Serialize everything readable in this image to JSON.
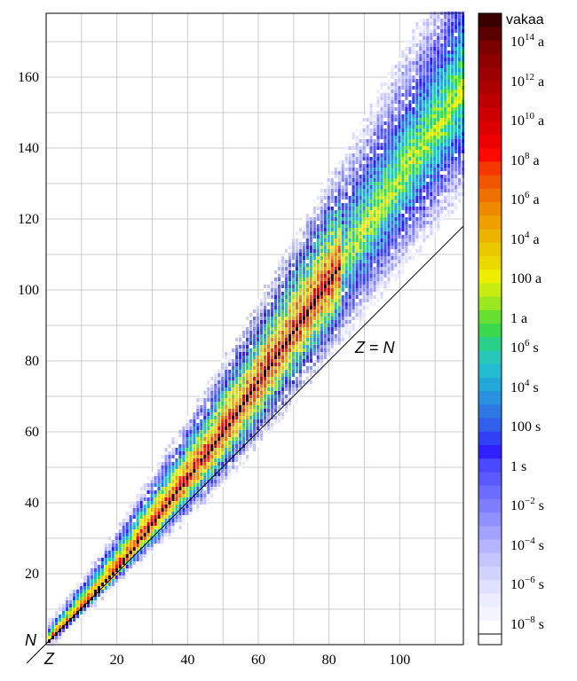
{
  "chart_data": {
    "type": "heatmap",
    "title": "",
    "x_axis": {
      "letter": "Z",
      "range": [
        0,
        118
      ],
      "ticks": [
        20,
        40,
        60,
        80,
        100
      ]
    },
    "y_axis": {
      "letter": "N",
      "range": [
        0,
        178
      ],
      "ticks": [
        20,
        40,
        60,
        80,
        100,
        120,
        140,
        160
      ]
    },
    "grid": true,
    "reference_line": {
      "label_var1": "Z",
      "label_eq": " = ",
      "label_var2": "N",
      "points": [
        [
          0,
          0
        ],
        [
          118,
          118
        ]
      ]
    },
    "colorbar": {
      "placement": "right",
      "stable_label": "vakaa",
      "labels": [
        {
          "base": "10",
          "exp": "14",
          "unit": "a"
        },
        {
          "base": "10",
          "exp": "12",
          "unit": "a"
        },
        {
          "base": "10",
          "exp": "10",
          "unit": "a"
        },
        {
          "base": "10",
          "exp": "8",
          "unit": "a"
        },
        {
          "base": "10",
          "exp": "6",
          "unit": "a"
        },
        {
          "base": "10",
          "exp": "4",
          "unit": "a"
        },
        {
          "base": "100",
          "exp": "",
          "unit": "a"
        },
        {
          "base": "1",
          "exp": "",
          "unit": "a"
        },
        {
          "base": "10",
          "exp": "6",
          "unit": "s"
        },
        {
          "base": "10",
          "exp": "4",
          "unit": "s"
        },
        {
          "base": "100",
          "exp": "",
          "unit": "s"
        },
        {
          "base": "1",
          "exp": "",
          "unit": "s"
        },
        {
          "base": "10",
          "exp": "−2",
          "unit": "s"
        },
        {
          "base": "10",
          "exp": "−4",
          "unit": "s"
        },
        {
          "base": "10",
          "exp": "−6",
          "unit": "s"
        },
        {
          "base": "10",
          "exp": "−8",
          "unit": "s"
        }
      ],
      "colors": [
        "#3a0000",
        "#5a0000",
        "#7a0000",
        "#8c0000",
        "#9c0000",
        "#ac0000",
        "#bc0000",
        "#cc0000",
        "#dc0000",
        "#ec0000",
        "#fa0a00",
        "#f53800",
        "#f05500",
        "#ee7000",
        "#ee8a00",
        "#eea000",
        "#ecb400",
        "#eac800",
        "#ead800",
        "#eeee00",
        "#c8ec10",
        "#9ae820",
        "#66e030",
        "#3ad84c",
        "#28d088",
        "#28c8b8",
        "#24bcd0",
        "#22a8d8",
        "#2a90e0",
        "#2e78e4",
        "#3060ec",
        "#3040f4",
        "#3020ff",
        "#4848ff",
        "#5a5aff",
        "#6c6cff",
        "#7e7eff",
        "#9090ff",
        "#a2a2ff",
        "#b4b4ff",
        "#c4c4ff",
        "#d2d2ff",
        "#e0e0ff",
        "#ececff",
        "#f4f4ff",
        "#ffffff"
      ]
    },
    "band": {
      "description_free": true,
      "stable_color": "#2a0000",
      "z_max": 118
    }
  }
}
